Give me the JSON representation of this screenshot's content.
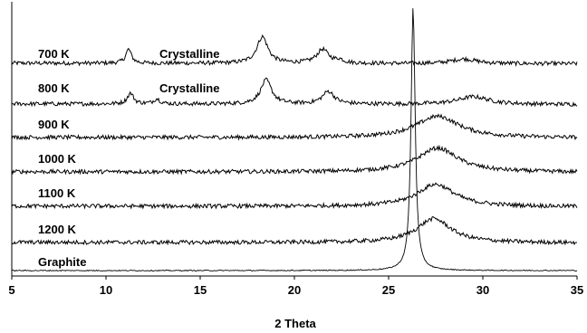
{
  "chart_data": {
    "type": "line",
    "xlabel": "2 Theta",
    "ylabel": "",
    "title": "",
    "xlim": [
      5,
      35
    ],
    "xticks": [
      5,
      10,
      15,
      20,
      25,
      30,
      35
    ],
    "grid": false,
    "series": [
      {
        "name": "700 K",
        "note": "Crystalline",
        "baseline": 0.08,
        "peaks": [
          {
            "x": 11.2,
            "h": 0.55,
            "w": 0.18
          },
          {
            "x": 18.3,
            "h": 1.05,
            "w": 0.35
          },
          {
            "x": 21.5,
            "h": 0.55,
            "w": 0.38
          },
          {
            "x": 22.4,
            "h": 0.12,
            "w": 0.25
          },
          {
            "x": 29.0,
            "h": 0.18,
            "w": 0.8
          }
        ]
      },
      {
        "name": "800 K",
        "note": "Crystalline",
        "baseline": 0.08,
        "peaks": [
          {
            "x": 11.3,
            "h": 0.42,
            "w": 0.2
          },
          {
            "x": 12.7,
            "h": 0.2,
            "w": 0.2
          },
          {
            "x": 18.5,
            "h": 0.95,
            "w": 0.35
          },
          {
            "x": 21.8,
            "h": 0.5,
            "w": 0.38
          },
          {
            "x": 29.5,
            "h": 0.3,
            "w": 1.0
          }
        ]
      },
      {
        "name": "900 K",
        "note": "",
        "baseline": 0.08,
        "peaks": [
          {
            "x": 27.6,
            "h": 0.85,
            "w": 1.4
          }
        ]
      },
      {
        "name": "1000 K",
        "note": "",
        "baseline": 0.08,
        "peaks": [
          {
            "x": 27.6,
            "h": 0.95,
            "w": 1.3
          }
        ]
      },
      {
        "name": "1100 K",
        "note": "",
        "baseline": 0.08,
        "peaks": [
          {
            "x": 27.5,
            "h": 0.88,
            "w": 1.2
          }
        ]
      },
      {
        "name": "1200 K",
        "note": "",
        "baseline": 0.08,
        "peaks": [
          {
            "x": 27.4,
            "h": 0.95,
            "w": 1.1
          }
        ]
      },
      {
        "name": "Graphite",
        "note": "",
        "baseline": 0.0,
        "peaks": [
          {
            "x": 26.3,
            "h": 5.6,
            "w": 0.13
          }
        ]
      }
    ]
  }
}
